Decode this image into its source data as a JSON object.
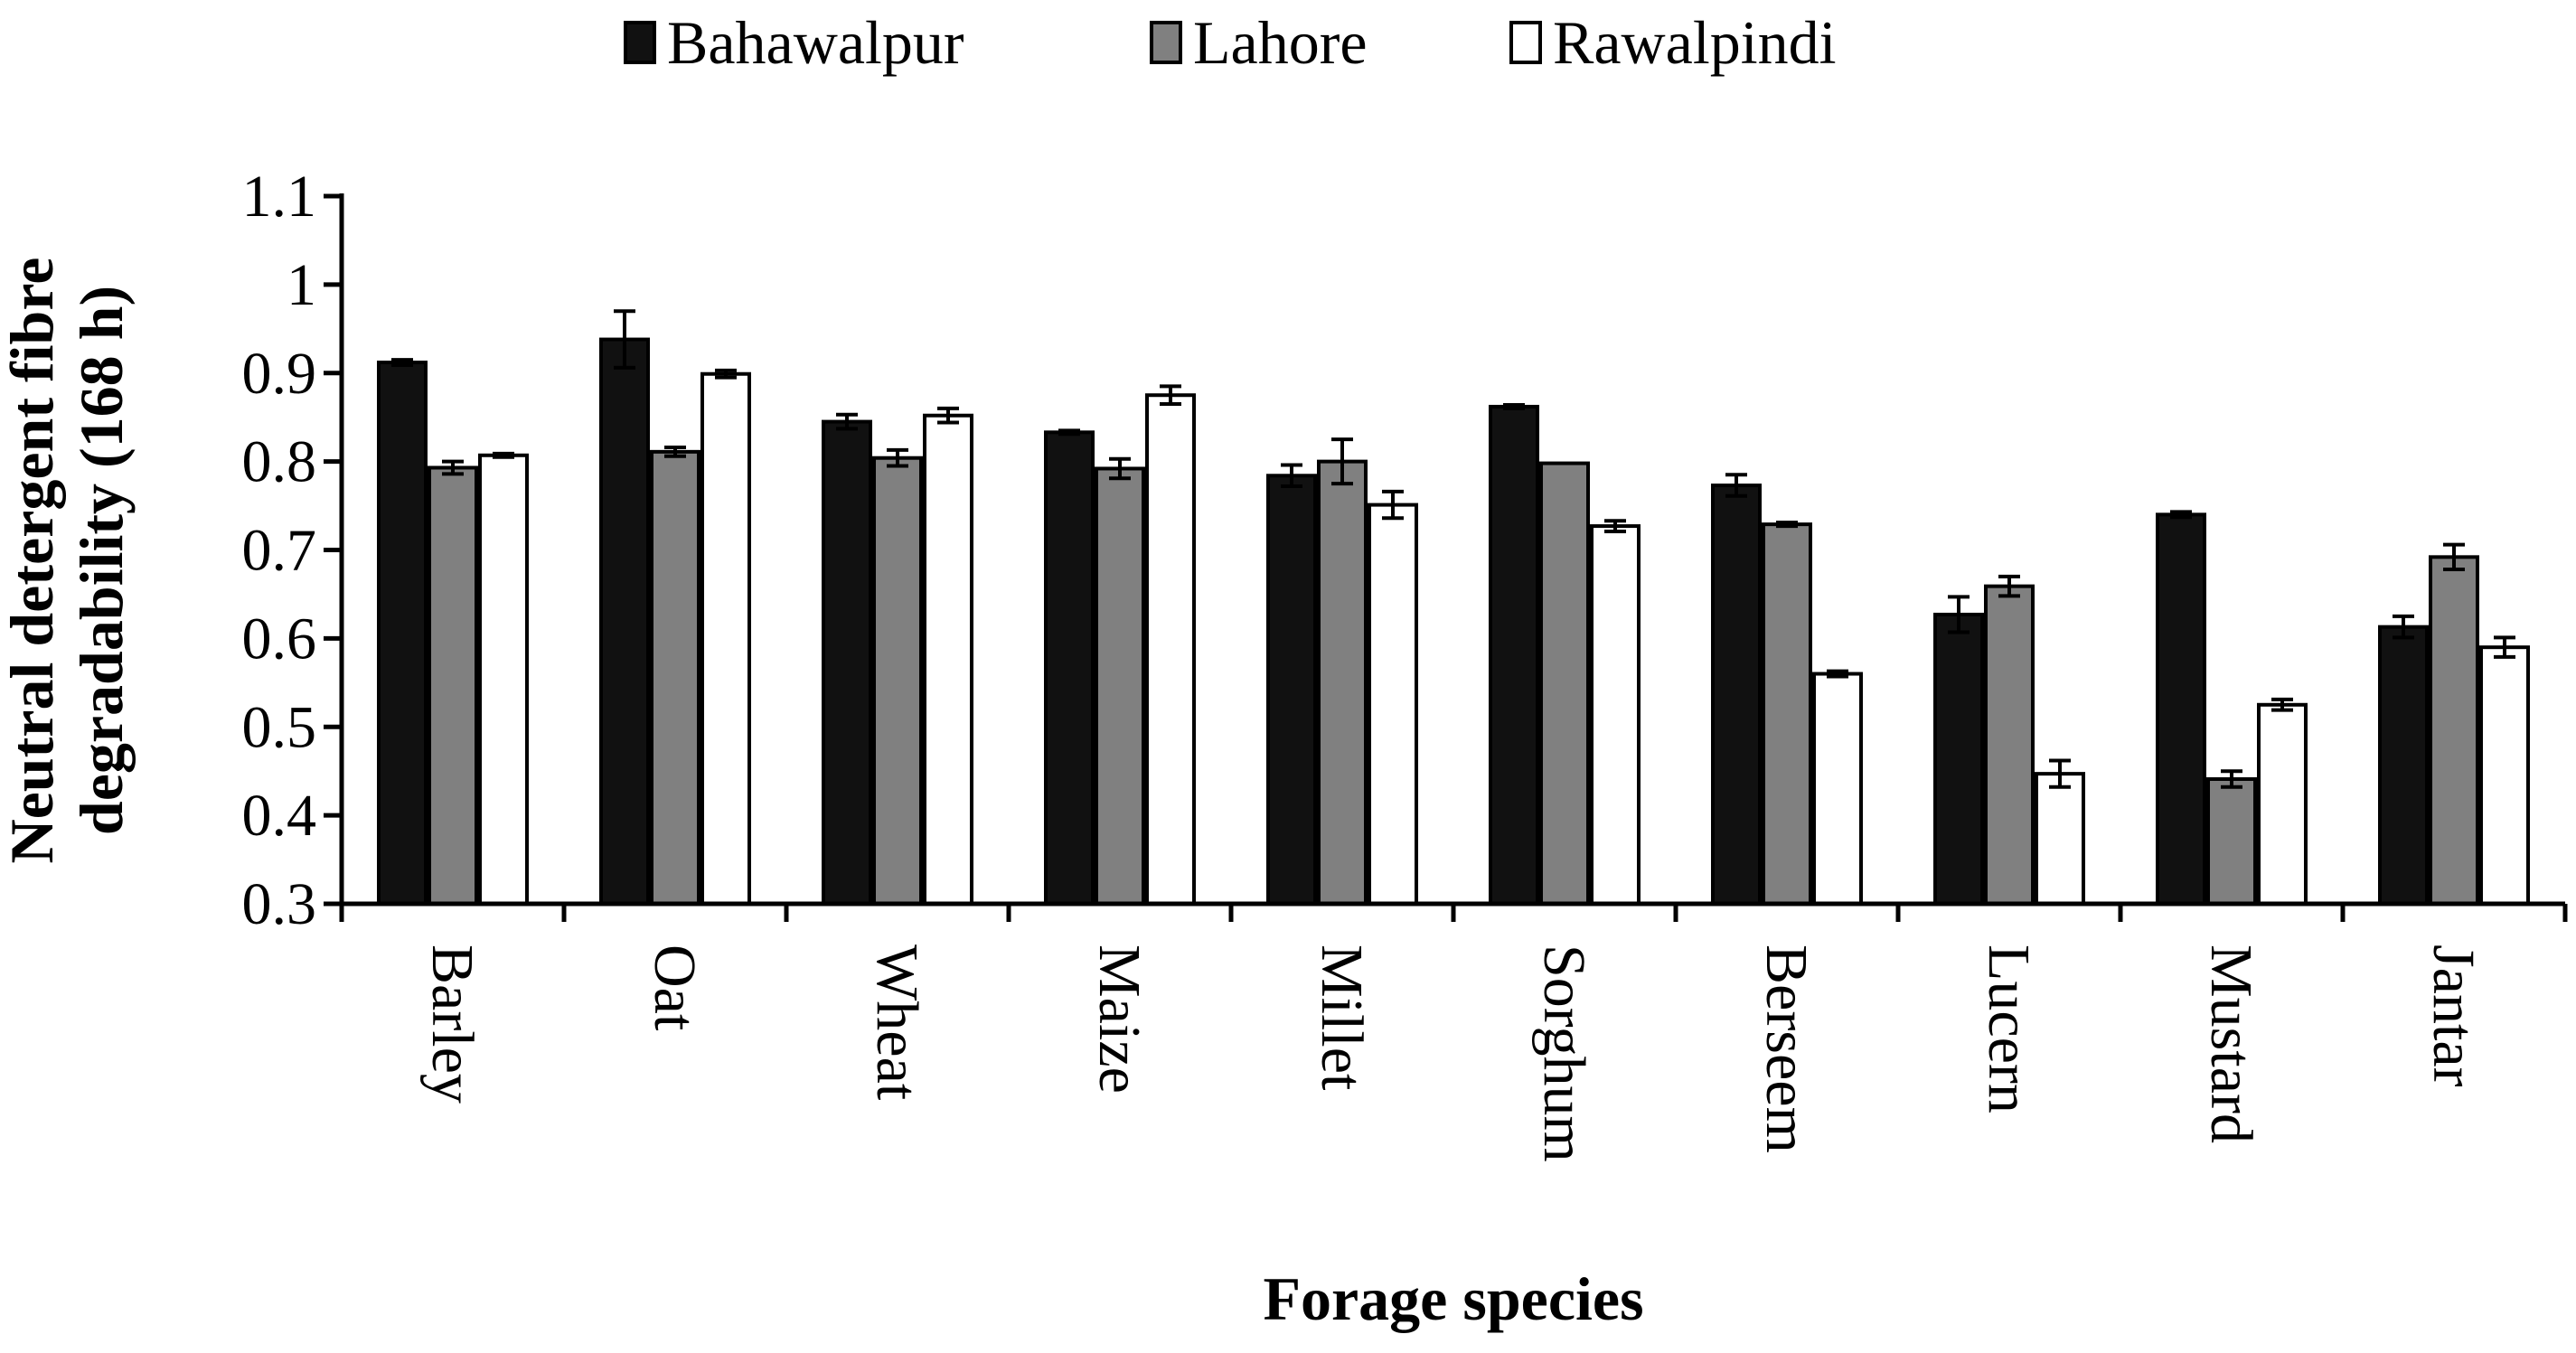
{
  "chart_data": {
    "type": "bar",
    "title": "",
    "xlabel": "Forage species",
    "ylabel_line1": "Neutral detergent fibre",
    "ylabel_line2": "degradability  (168 h)",
    "ylim": [
      0.3,
      1.1
    ],
    "yticks": [
      "0.3",
      "0.4",
      "0.5",
      "0.6",
      "0.7",
      "0.8",
      "0.9",
      "1",
      "1.1"
    ],
    "legend_position": "top-center",
    "categories": [
      "Barley",
      "Oat",
      "Wheat",
      "Maize",
      "Millet",
      "Sorghum",
      "Berseem",
      "Lucern",
      "Mustard",
      "Jantar"
    ],
    "series": [
      {
        "name": "Bahawalpur",
        "color": "#111111",
        "values": [
          0.912,
          0.938,
          0.845,
          0.833,
          0.784,
          0.862,
          0.773,
          0.627,
          0.74,
          0.613
        ],
        "errors": [
          0.003,
          0.032,
          0.008,
          0.002,
          0.012,
          0.002,
          0.012,
          0.02,
          0.003,
          0.012
        ]
      },
      {
        "name": "Lahore",
        "color": "#808080",
        "values": [
          0.793,
          0.811,
          0.804,
          0.792,
          0.8,
          0.798,
          0.729,
          0.659,
          0.441,
          0.692
        ],
        "errors": [
          0.007,
          0.005,
          0.009,
          0.011,
          0.025,
          0.0,
          0.002,
          0.011,
          0.009,
          0.014
        ]
      },
      {
        "name": "Rawalpindi",
        "color": "#ffffff",
        "values": [
          0.807,
          0.899,
          0.852,
          0.875,
          0.751,
          0.727,
          0.56,
          0.447,
          0.525,
          0.59
        ],
        "errors": [
          0.002,
          0.004,
          0.008,
          0.01,
          0.015,
          0.006,
          0.003,
          0.015,
          0.006,
          0.011
        ]
      }
    ]
  }
}
